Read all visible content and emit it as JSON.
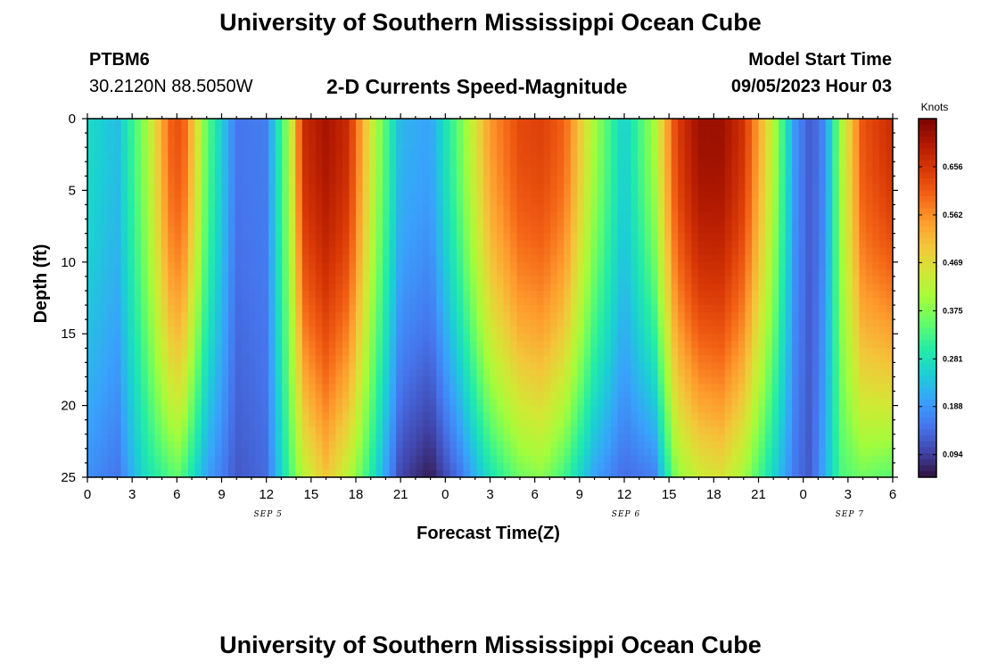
{
  "header": {
    "title": "University of Southern Mississippi Ocean Cube",
    "station_id": "PTBM6",
    "coords": "30.2120N  88.5050W",
    "subtitle": "2-D Currents Speed-Magnitude",
    "model_start_label": "Model Start Time",
    "model_start_value": "09/05/2023 Hour 03"
  },
  "footer": {
    "title": "University of Southern Mississippi Ocean Cube"
  },
  "chart_data": {
    "type": "heatmap",
    "title": "2-D Currents Speed-Magnitude",
    "xlabel": "Forecast Time(Z)",
    "ylabel": "Depth (ft)",
    "x_range_hours": [
      0,
      54
    ],
    "y_range": [
      0,
      25
    ],
    "x_tick_labels": [
      "0",
      "3",
      "6",
      "9",
      "12",
      "15",
      "18",
      "21",
      "0",
      "3",
      "6",
      "9",
      "12",
      "15",
      "18",
      "21",
      "0",
      "3",
      "6"
    ],
    "y_tick_labels": [
      "0",
      "5",
      "10",
      "15",
      "20",
      "25"
    ],
    "date_labels": [
      {
        "text": "SEP 5",
        "hour": 12
      },
      {
        "text": "SEP 6",
        "hour": 36
      },
      {
        "text": "SEP 7",
        "hour": 51
      }
    ],
    "colorbar": {
      "unit": "Knots",
      "tick_labels": [
        "0.656",
        "0.562",
        "0.469",
        "0.375",
        "0.281",
        "0.188",
        "0.094"
      ],
      "range": [
        0.05,
        0.75
      ],
      "colors": [
        "#30123b",
        "#4145ab",
        "#4675ed",
        "#39a2fc",
        "#1bcfd4",
        "#24eca6",
        "#61fc6c",
        "#a4fc3b",
        "#d1e834",
        "#f3c63a",
        "#fe9b2d",
        "#f36315",
        "#d93806",
        "#b11901",
        "#7a0402"
      ]
    },
    "time_profile": {
      "hours": [
        0,
        2,
        4,
        5.5,
        6,
        6.5,
        8,
        10,
        12,
        13.5,
        14.5,
        16,
        17.5,
        19,
        21,
        23,
        25,
        27,
        29,
        30.5,
        32,
        34,
        36,
        38,
        39.5,
        41,
        42.5,
        44,
        46,
        47.5,
        48.5,
        49.5,
        50.5,
        52,
        54
      ],
      "surface_knots": [
        0.27,
        0.23,
        0.4,
        0.6,
        0.62,
        0.6,
        0.35,
        0.15,
        0.16,
        0.4,
        0.67,
        0.71,
        0.67,
        0.45,
        0.22,
        0.2,
        0.36,
        0.55,
        0.63,
        0.64,
        0.6,
        0.4,
        0.25,
        0.4,
        0.64,
        0.72,
        0.72,
        0.66,
        0.42,
        0.18,
        0.12,
        0.18,
        0.4,
        0.62,
        0.67
      ],
      "bottom_knots": [
        0.18,
        0.15,
        0.28,
        0.33,
        0.35,
        0.32,
        0.2,
        0.12,
        0.14,
        0.32,
        0.42,
        0.5,
        0.42,
        0.3,
        0.1,
        0.06,
        0.15,
        0.28,
        0.36,
        0.38,
        0.32,
        0.2,
        0.14,
        0.16,
        0.38,
        0.44,
        0.46,
        0.4,
        0.26,
        0.15,
        0.12,
        0.22,
        0.33,
        0.36,
        0.34
      ]
    },
    "grid": false
  }
}
